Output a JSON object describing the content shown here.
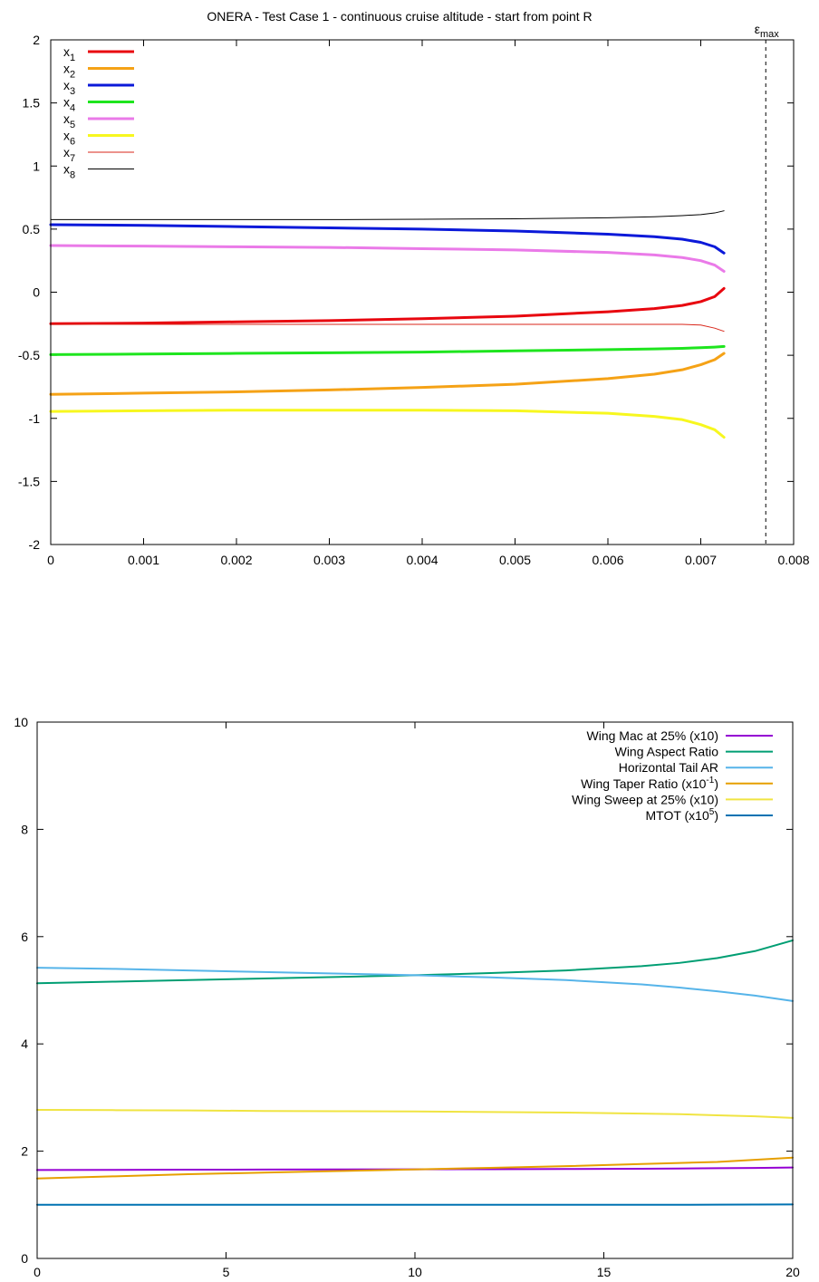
{
  "chart_data": [
    {
      "type": "line",
      "title": "ONERA - Test Case 1 - continuous cruise altitude - start from point R",
      "xlim": [
        0,
        0.008
      ],
      "ylim": [
        -2,
        2
      ],
      "xticks": [
        "0",
        "0.001",
        "0.002",
        "0.003",
        "0.004",
        "0.005",
        "0.006",
        "0.007",
        "0.008"
      ],
      "yticks": [
        "2",
        "1.5",
        "1",
        "0.5",
        "0",
        "-0.5",
        "-1",
        "-1.5",
        "-2"
      ],
      "legend_position": "top-left",
      "annotation": {
        "label": "ε",
        "subscript": "max",
        "x": 0.0077,
        "style": "dashed vertical line"
      },
      "x": [
        0,
        0.001,
        0.002,
        0.003,
        0.004,
        0.005,
        0.006,
        0.0065,
        0.0068,
        0.007,
        0.00715,
        0.00725
      ],
      "series": [
        {
          "name": "x",
          "sub": "1",
          "color": "#e8070f",
          "width": 3,
          "values": [
            -0.25,
            -0.245,
            -0.235,
            -0.225,
            -0.21,
            -0.19,
            -0.155,
            -0.13,
            -0.105,
            -0.075,
            -0.035,
            0.03
          ]
        },
        {
          "name": "x",
          "sub": "2",
          "color": "#f5a216",
          "width": 3,
          "values": [
            -0.81,
            -0.8,
            -0.79,
            -0.775,
            -0.755,
            -0.73,
            -0.685,
            -0.65,
            -0.615,
            -0.575,
            -0.535,
            -0.485
          ]
        },
        {
          "name": "x",
          "sub": "3",
          "color": "#0b19d9",
          "width": 3,
          "values": [
            0.535,
            0.53,
            0.52,
            0.51,
            0.5,
            0.485,
            0.46,
            0.44,
            0.42,
            0.395,
            0.36,
            0.31
          ]
        },
        {
          "name": "x",
          "sub": "4",
          "color": "#1ee51e",
          "width": 3,
          "values": [
            -0.495,
            -0.49,
            -0.485,
            -0.48,
            -0.475,
            -0.465,
            -0.455,
            -0.45,
            -0.445,
            -0.44,
            -0.435,
            -0.43
          ]
        },
        {
          "name": "x",
          "sub": "5",
          "color": "#ea7ae8",
          "width": 3,
          "values": [
            0.37,
            0.365,
            0.36,
            0.355,
            0.345,
            0.335,
            0.315,
            0.295,
            0.275,
            0.25,
            0.215,
            0.165
          ]
        },
        {
          "name": "x",
          "sub": "6",
          "color": "#f7f71f",
          "width": 3,
          "values": [
            -0.945,
            -0.94,
            -0.935,
            -0.935,
            -0.935,
            -0.94,
            -0.96,
            -0.985,
            -1.01,
            -1.05,
            -1.09,
            -1.15
          ]
        },
        {
          "name": "x",
          "sub": "7",
          "color": "#d9261a",
          "width": 1,
          "values": [
            -0.255,
            -0.255,
            -0.255,
            -0.255,
            -0.255,
            -0.255,
            -0.255,
            -0.255,
            -0.255,
            -0.26,
            -0.285,
            -0.31
          ]
        },
        {
          "name": "x",
          "sub": "8",
          "color": "#000000",
          "width": 1,
          "values": [
            0.575,
            0.575,
            0.575,
            0.575,
            0.578,
            0.582,
            0.59,
            0.598,
            0.607,
            0.615,
            0.628,
            0.645
          ]
        }
      ]
    },
    {
      "type": "line",
      "xlim": [
        0,
        20
      ],
      "ylim": [
        0,
        10
      ],
      "xticks": [
        "0",
        "5",
        "10",
        "15",
        "20"
      ],
      "yticks": [
        "10",
        "8",
        "6",
        "4",
        "2",
        "0"
      ],
      "legend_position": "top-right",
      "x": [
        0,
        2,
        4,
        6,
        8,
        10,
        12,
        14,
        16,
        17,
        18,
        19,
        20
      ],
      "series": [
        {
          "name": "Wing Mac at 25% (x10)",
          "color": "#9500d3",
          "width": 2,
          "values": [
            1.65,
            1.652,
            1.655,
            1.657,
            1.659,
            1.661,
            1.664,
            1.668,
            1.673,
            1.677,
            1.682,
            1.688,
            1.695
          ]
        },
        {
          "name": "Wing Aspect Ratio",
          "color": "#009e73",
          "width": 2,
          "values": [
            5.13,
            5.16,
            5.19,
            5.22,
            5.25,
            5.28,
            5.32,
            5.37,
            5.45,
            5.51,
            5.6,
            5.73,
            5.93
          ]
        },
        {
          "name": "Horizontal Tail AR",
          "color": "#56b4e9",
          "width": 2,
          "values": [
            5.42,
            5.4,
            5.37,
            5.34,
            5.31,
            5.28,
            5.24,
            5.19,
            5.11,
            5.05,
            4.98,
            4.9,
            4.8
          ]
        },
        {
          "name": "Wing Taper Ratio (x10",
          "sup": "-1",
          "suffix": ")",
          "color": "#e69f00",
          "width": 2,
          "values": [
            1.49,
            1.53,
            1.57,
            1.6,
            1.63,
            1.66,
            1.69,
            1.72,
            1.76,
            1.78,
            1.8,
            1.84,
            1.88
          ]
        },
        {
          "name": "Wing Sweep at 25% (x10)",
          "color": "#f0e442",
          "width": 2,
          "values": [
            2.77,
            2.765,
            2.76,
            2.75,
            2.745,
            2.74,
            2.73,
            2.72,
            2.7,
            2.69,
            2.67,
            2.65,
            2.62
          ]
        },
        {
          "name": "MTOT (x10",
          "sup": "5",
          "suffix": ")",
          "color": "#0072b2",
          "width": 2,
          "values": [
            1.0,
            1.0,
            1.0,
            1.0,
            1.0,
            1.0,
            1.0,
            1.0,
            1.0,
            1.001,
            1.002,
            1.004,
            1.008
          ]
        }
      ]
    }
  ]
}
